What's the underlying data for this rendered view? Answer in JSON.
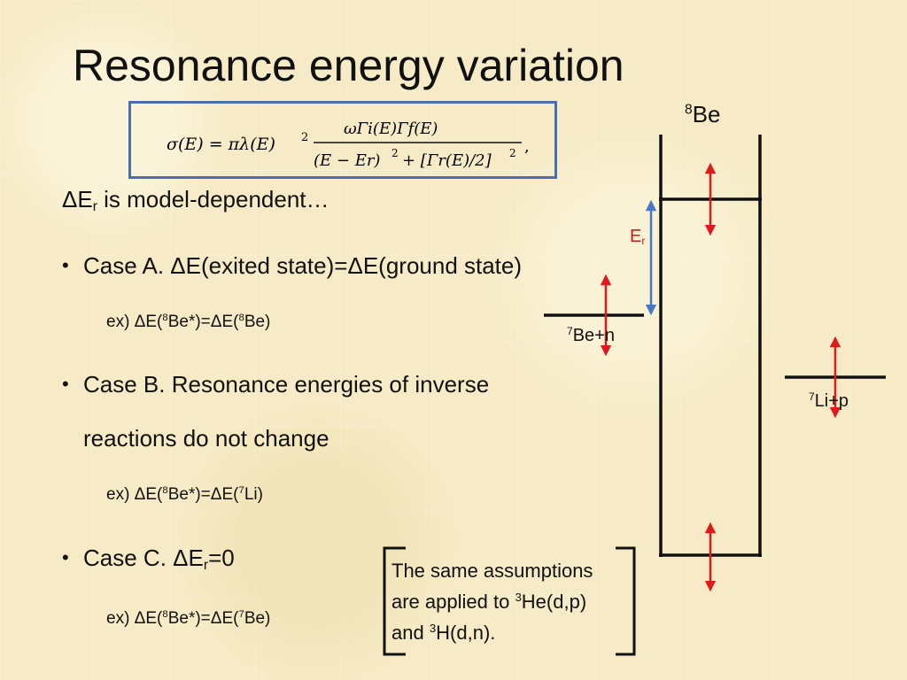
{
  "title": "Resonance energy variation",
  "formula": {
    "lhs": "σ(E) = πλ(E)",
    "lhs_exp": "2",
    "numerator": "ωΓi(E)Γf(E)",
    "denominator_part1": "(E − Er)",
    "denominator_exp1": "2",
    "denominator_part2": "+ [Γr(E)/2]",
    "denominator_exp2": "2",
    "trailing": ","
  },
  "intro": {
    "prefix": "ΔE",
    "sub": "r",
    "suffix": " is model-dependent…"
  },
  "case_a": {
    "bullet": "•",
    "label": "Case A. ΔE(exited state)=ΔE(ground state)",
    "ex_prefix": "ex) ΔE(",
    "ex_sup1": "8",
    "ex_mid": "Be*)=ΔE(",
    "ex_sup2": "8",
    "ex_suffix": "Be)"
  },
  "case_b": {
    "bullet": "•",
    "label_line1": "Case B. Resonance energies of inverse",
    "label_line2": "reactions do not change",
    "ex_prefix": "ex) ΔE(",
    "ex_sup1": "8",
    "ex_mid": "Be*)=ΔE(",
    "ex_sup2": "7",
    "ex_suffix": "Li)"
  },
  "case_c": {
    "bullet": "•",
    "label_prefix": "Case C. ΔE",
    "label_sub": "r",
    "label_suffix": "=0",
    "ex_prefix": "ex) ΔE(",
    "ex_sup1": "8",
    "ex_mid": "Be*)=ΔE(",
    "ex_sup2": "7",
    "ex_suffix": "Be)"
  },
  "note": {
    "line1": "The same assumptions",
    "line2_prefix": "are applied to ",
    "line2_sup": "3",
    "line2_suffix": "He(d,p)",
    "line3_prefix": "and ",
    "line3_sup": "3",
    "line3_suffix": "H(d,n)."
  },
  "diagram": {
    "label_8be_sup": "8",
    "label_8be": "Be",
    "label_er": "E",
    "label_er_sub": "r",
    "label_7ben_sup": "7",
    "label_7ben": "Be+n",
    "label_7lip_sup": "7",
    "label_7lip": "Li+p",
    "colors": {
      "arrow_red": "#e0191b",
      "arrow_blue": "#4a78c8",
      "er_label": "#d01818",
      "box_border": "#4a6fb0"
    }
  }
}
